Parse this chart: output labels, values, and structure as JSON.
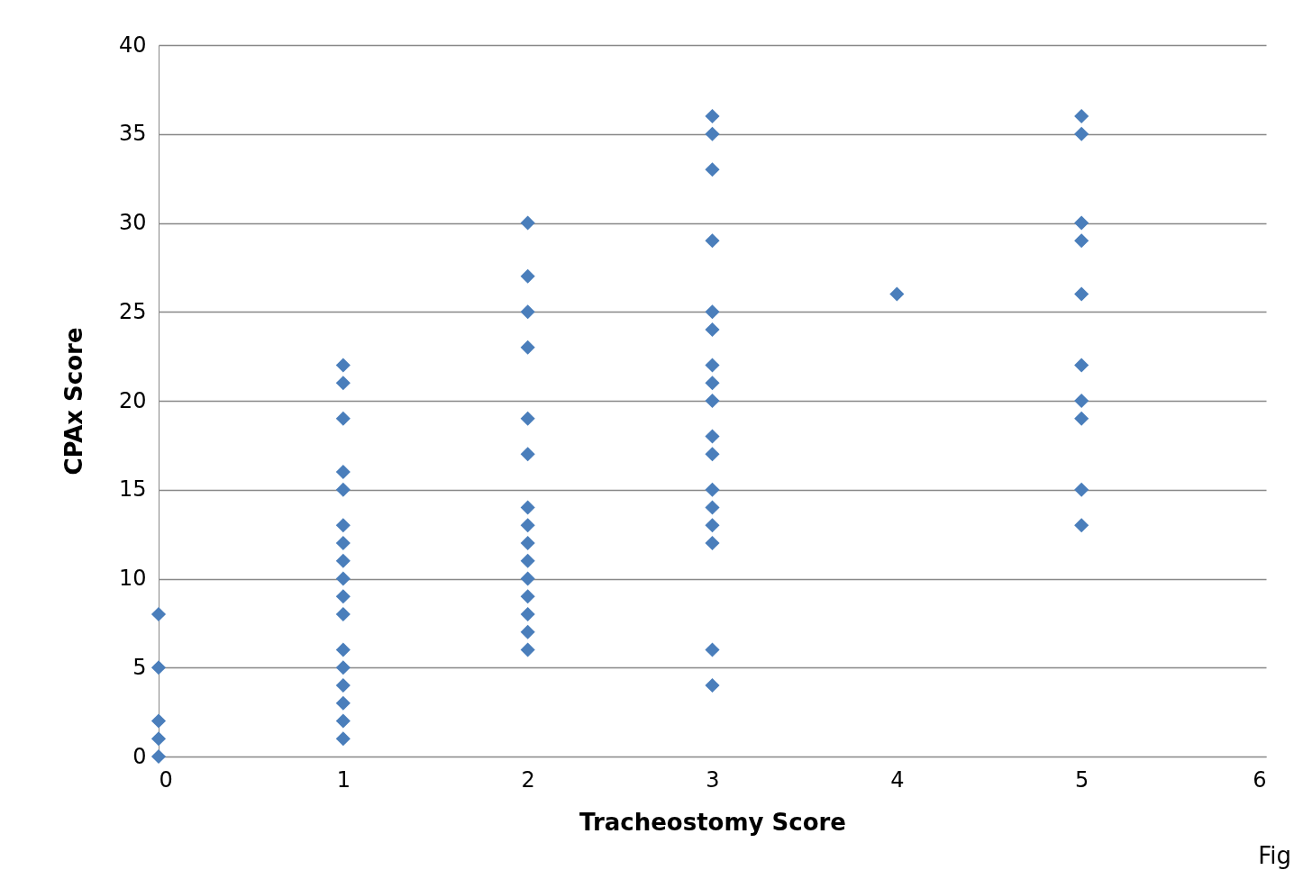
{
  "chart_data": {
    "type": "scatter",
    "xlabel": "Tracheostomy Score",
    "ylabel": "CPAx Score",
    "x": [
      0,
      0,
      0,
      0,
      0,
      1,
      1,
      1,
      1,
      1,
      1,
      1,
      1,
      1,
      1,
      1,
      1,
      1,
      1,
      1,
      1,
      1,
      2,
      2,
      2,
      2,
      2,
      2,
      2,
      2,
      2,
      2,
      2,
      2,
      2,
      2,
      2,
      3,
      3,
      3,
      3,
      3,
      3,
      3,
      3,
      3,
      3,
      3,
      3,
      3,
      3,
      3,
      3,
      3,
      4,
      5,
      5,
      5,
      5,
      5,
      5,
      5,
      5,
      5,
      5
    ],
    "series": [
      {
        "color": "#4a7ebb",
        "values": [
          8,
          5,
          2,
          1,
          0,
          22,
          21,
          19,
          16,
          15,
          13,
          12,
          11,
          10,
          9,
          8,
          6,
          5,
          4,
          3,
          2,
          1,
          30,
          27,
          25,
          23,
          19,
          17,
          14,
          13,
          12,
          11,
          10,
          9,
          8,
          7,
          6,
          36,
          35,
          33,
          29,
          25,
          24,
          22,
          21,
          20,
          18,
          17,
          15,
          14,
          13,
          12,
          6,
          4,
          26,
          36,
          35,
          30,
          29,
          26,
          22,
          20,
          19,
          15,
          13
        ]
      }
    ],
    "xlim": [
      0,
      6
    ],
    "xticks": [
      0,
      1,
      2,
      3,
      4,
      5,
      6
    ],
    "ylim": [
      0,
      40
    ],
    "yticks": [
      0,
      5,
      10,
      15,
      20,
      25,
      30,
      35,
      40
    ],
    "grid": "y",
    "marker": "diamond",
    "annotations": [
      "Fig"
    ]
  }
}
